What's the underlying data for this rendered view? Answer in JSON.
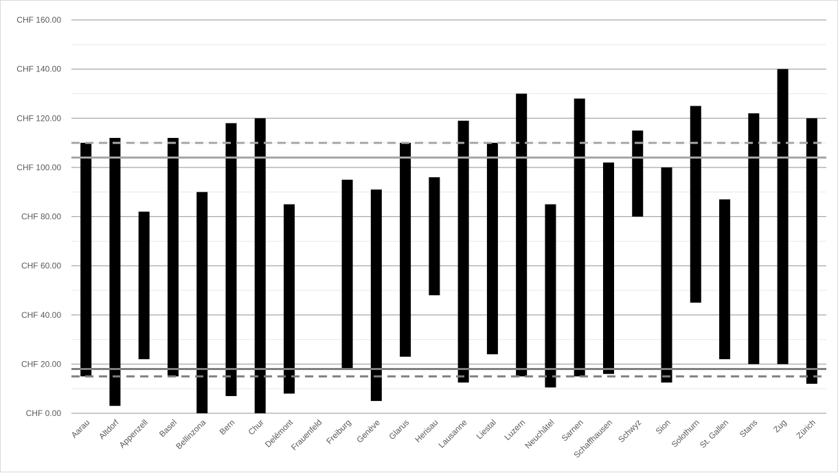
{
  "chart_data": {
    "type": "bar",
    "subtype": "floating-range",
    "title": "",
    "xlabel": "",
    "ylabel": "",
    "ylim": [
      0,
      160
    ],
    "y_ticks": [
      0,
      20,
      40,
      60,
      80,
      100,
      120,
      140,
      160
    ],
    "y_tick_labels": [
      "CHF 0.00",
      "CHF 20.00",
      "CHF 40.00",
      "CHF 60.00",
      "CHF 80.00",
      "CHF 100.00",
      "CHF 120.00",
      "CHF 140.00",
      "CHF 160.00"
    ],
    "grid": true,
    "legend": "none",
    "categories": [
      "Aarau",
      "Altdorf",
      "Appenzell",
      "Basel",
      "Bellinzona",
      "Bern",
      "Chur",
      "Delémont",
      "Frauenfeld",
      "Freiburg",
      "Genève",
      "Glarus",
      "Herisau",
      "Lausanne",
      "Liestal",
      "Luzern",
      "Neuchâtel",
      "Sarnen",
      "Schaffhausen",
      "Schwyz",
      "Sion",
      "Solothurn",
      "St. Gallen",
      "Stans",
      "Zug",
      "Zürich"
    ],
    "series": [
      {
        "low": [
          15,
          3,
          22,
          15,
          0,
          7,
          0,
          8,
          null,
          18,
          5,
          23,
          48,
          12.5,
          24,
          15,
          10.5,
          15,
          16,
          80,
          12.5,
          45,
          22,
          20,
          20,
          12
        ],
        "high": [
          110,
          112,
          82,
          112,
          90,
          118,
          120,
          85,
          null,
          95,
          91,
          110,
          96,
          119,
          110,
          130,
          85,
          128,
          102,
          115,
          100,
          125,
          87,
          122,
          140,
          120
        ]
      }
    ],
    "reference_lines": [
      {
        "value": 110,
        "style": "dashed",
        "color": "#a6a6a6"
      },
      {
        "value": 104,
        "style": "solid",
        "color": "#a6a6a6"
      },
      {
        "value": 18,
        "style": "solid",
        "color": "#7f7f7f"
      },
      {
        "value": 15,
        "style": "dashed",
        "color": "#7f7f7f"
      }
    ],
    "colors": {
      "bar": "#000000",
      "grid": "#a6a6a6",
      "minor_grid": "#e7e7e7",
      "axis_text": "#595959"
    }
  }
}
